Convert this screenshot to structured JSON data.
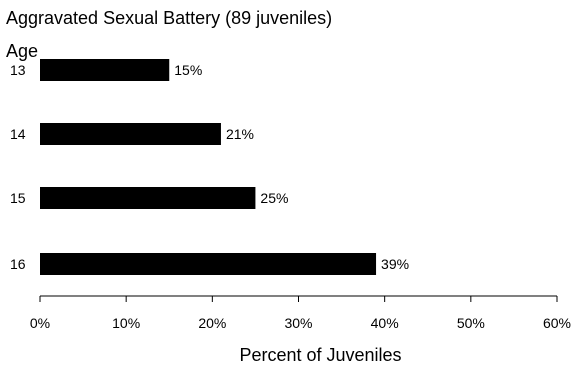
{
  "title": "Aggravated Sexual Battery  (89 juveniles)",
  "chart_data": {
    "type": "bar",
    "orientation": "horizontal",
    "title": "Aggravated Sexual Battery  (89 juveniles)",
    "ylabel": "Age",
    "xlabel": "Percent of Juveniles",
    "categories": [
      "13",
      "14",
      "15",
      "16"
    ],
    "values": [
      15,
      21,
      25,
      39
    ],
    "data_labels": [
      "15%",
      "21%",
      "25%",
      "39%"
    ],
    "xlim": [
      0,
      60
    ],
    "xticks": [
      0,
      10,
      20,
      30,
      40,
      50,
      60
    ],
    "xtick_labels": [
      "0%",
      "10%",
      "20%",
      "30%",
      "40%",
      "50%",
      "60%"
    ],
    "bar_color": "#000000",
    "grid": false,
    "legend": "none"
  }
}
